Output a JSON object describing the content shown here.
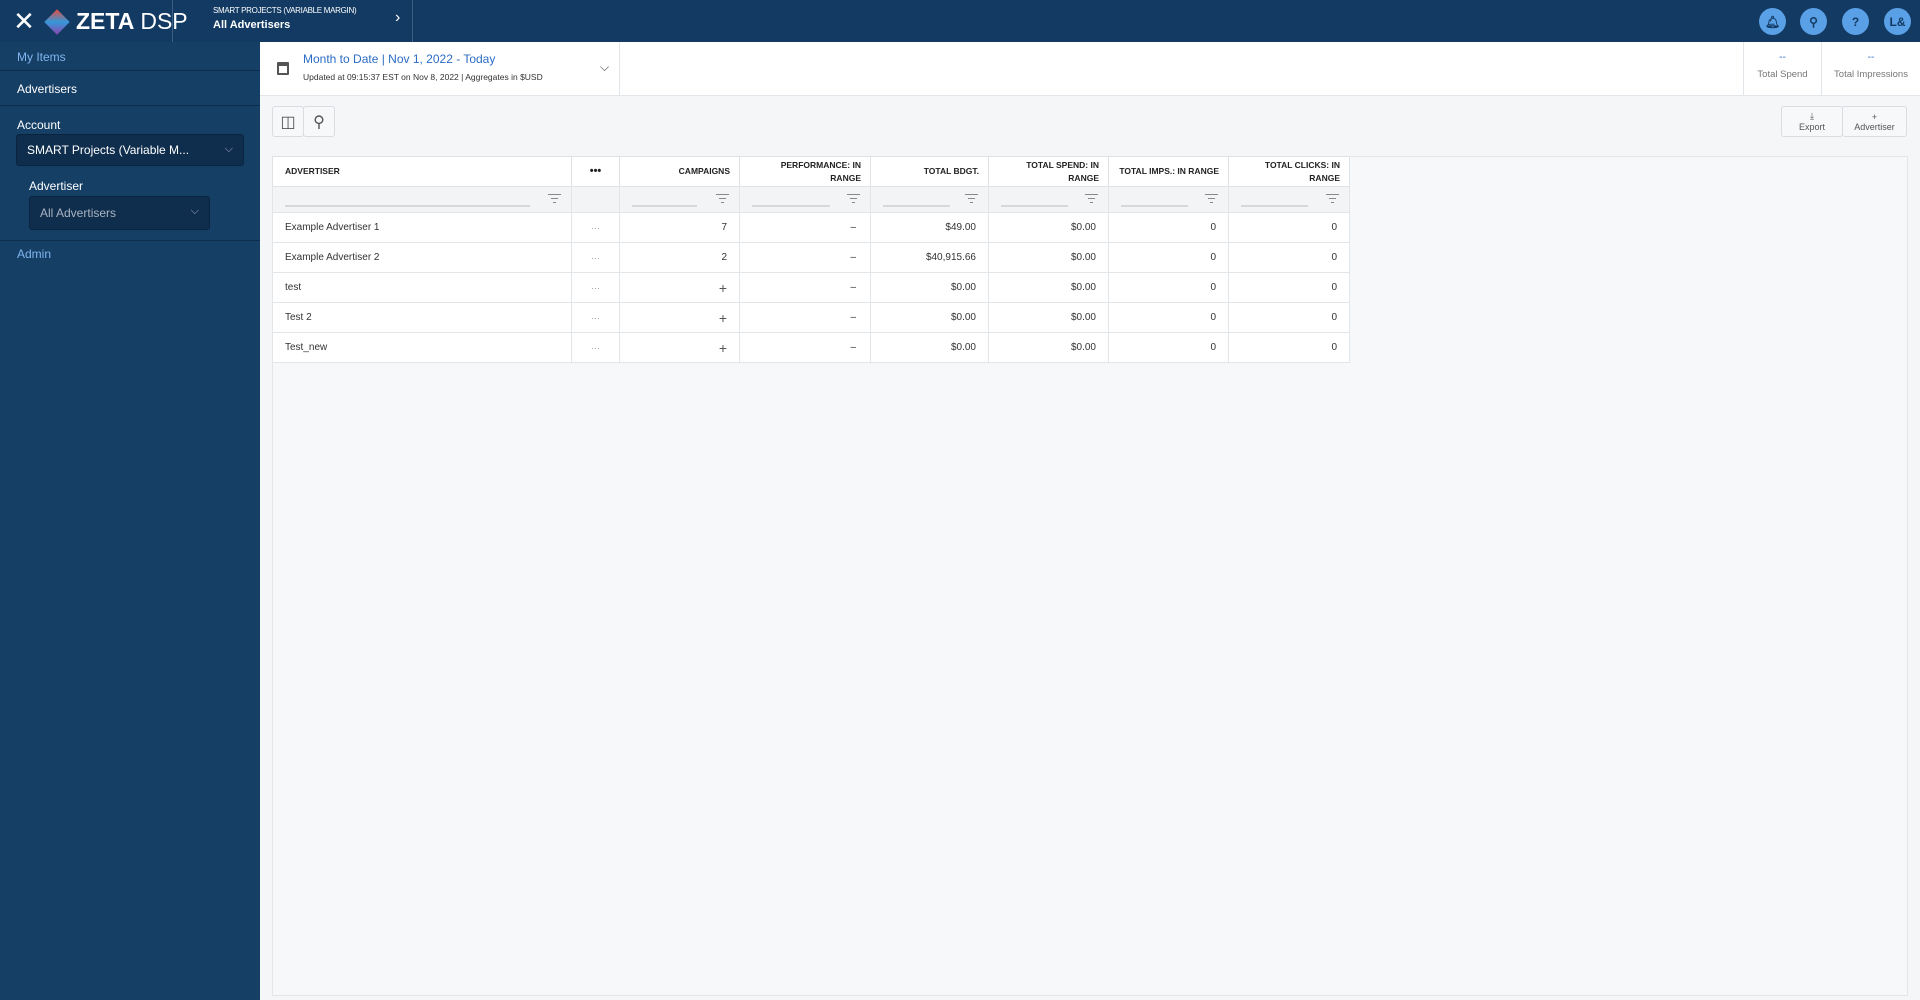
{
  "topbar": {
    "logo": "ZETA",
    "logo_suffix": "DSP",
    "crumb_parent": "SMART PROJECTS (VARIABLE MARGIN)",
    "crumb_current": "All Advertisers",
    "user_initials": "L&",
    "help": "?"
  },
  "sidebar": {
    "my_items": "My Items",
    "advertisers": "Advertisers",
    "account_label": "Account",
    "account_value": "SMART Projects (Variable M...",
    "advertiser_label": "Advertiser",
    "advertiser_value": "All Advertisers",
    "admin": "Admin"
  },
  "header": {
    "date_range": "Month to Date | Nov 1, 2022 - Today",
    "updated": "Updated at 09:15:37 EST on Nov 8, 2022 | Aggregates in $USD",
    "kpis": [
      {
        "value": "--",
        "label": "Total Spend"
      },
      {
        "value": "--",
        "label": "Total Impressions"
      }
    ]
  },
  "toolbar": {
    "export": "Export",
    "add": "Advertiser"
  },
  "table": {
    "columns": [
      "ADVERTISER",
      "•••",
      "CAMPAIGNS",
      "PERFORMANCE: IN RANGE",
      "TOTAL BDGT.",
      "TOTAL SPEND: IN RANGE",
      "TOTAL IMPS.: IN RANGE",
      "TOTAL CLICKS: IN RANGE"
    ],
    "rows": [
      [
        "Example Advertiser 1",
        "···",
        "7",
        "–",
        "$49.00",
        "$0.00",
        "0",
        "0"
      ],
      [
        "Example Advertiser 2",
        "···",
        "2",
        "–",
        "$40,915.66",
        "$0.00",
        "0",
        "0"
      ],
      [
        "test",
        "···",
        "+",
        "–",
        "$0.00",
        "$0.00",
        "0",
        "0"
      ],
      [
        "Test 2",
        "···",
        "+",
        "–",
        "$0.00",
        "$0.00",
        "0",
        "0"
      ],
      [
        "Test_new",
        "···",
        "+",
        "–",
        "$0.00",
        "$0.00",
        "0",
        "0"
      ]
    ]
  },
  "colors": {
    "topbar": "#123a63",
    "sidebar": "#163f66",
    "accent": "#2b6cc4",
    "icon_circle": "#5aa0e6"
  }
}
